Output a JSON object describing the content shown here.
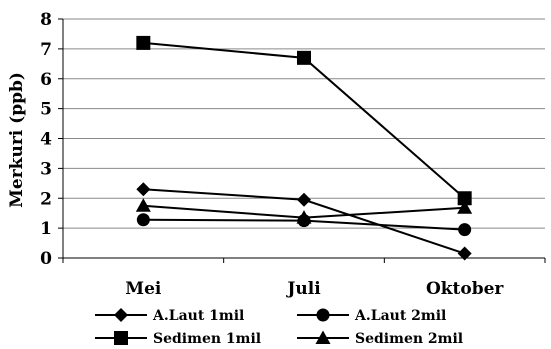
{
  "chart_data": {
    "type": "line",
    "title": "",
    "xlabel": "",
    "ylabel": "Merkuri (ppb)",
    "categories": [
      "Mei",
      "Juli",
      "Oktober"
    ],
    "ylim": [
      0,
      8
    ],
    "yticks": [
      "0",
      "1",
      "2",
      "3",
      "4",
      "5",
      "6",
      "7",
      "8"
    ],
    "grid": "horizontal",
    "legend": "bottom",
    "series": [
      {
        "name": "A.Laut 1mil",
        "marker": "diamond",
        "values": [
          2.3,
          1.95,
          0.15
        ]
      },
      {
        "name": "A.Laut 2mil",
        "marker": "circle",
        "values": [
          1.28,
          1.25,
          0.95
        ]
      },
      {
        "name": "Sedimen 1mil",
        "marker": "square",
        "values": [
          7.2,
          6.7,
          2.0
        ]
      },
      {
        "name": "Sedimen 2mil",
        "marker": "triangle",
        "values": [
          1.75,
          1.35,
          1.68
        ]
      }
    ]
  }
}
